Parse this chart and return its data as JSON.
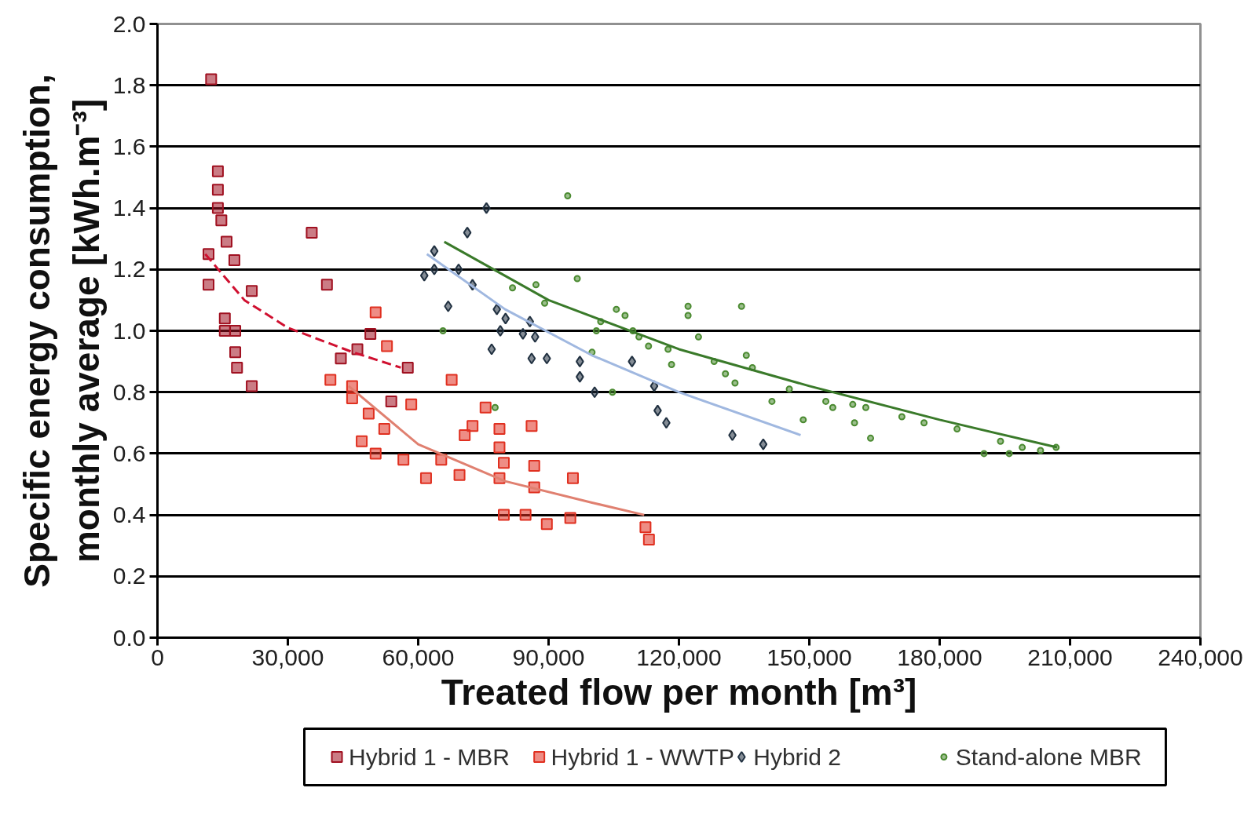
{
  "chart_data": {
    "type": "scatter",
    "xlabel": "Treated flow per month [m³]",
    "ylabel": "Specific energy consumption,\nmonthly average [kWh.m⁻³]",
    "xlim": [
      0,
      240000
    ],
    "ylim": [
      0,
      2
    ],
    "xticks": [
      0,
      {
        "value": 30000,
        "label": "30,000"
      },
      {
        "value": 60000,
        "label": "60,000"
      },
      {
        "value": 90000,
        "label": "90,000"
      },
      {
        "value": 120000,
        "label": "120,000"
      },
      {
        "value": 150000,
        "label": "150,000"
      },
      {
        "value": 180000,
        "label": "180,000"
      },
      {
        "value": 210000,
        "label": "210,000"
      },
      {
        "value": 240000,
        "label": "240,000"
      }
    ],
    "yticks": [
      {
        "value": 0,
        "label": "0.0"
      },
      {
        "value": 0.2,
        "label": "0.2"
      },
      {
        "value": 0.4,
        "label": "0.4"
      },
      {
        "value": 0.6,
        "label": "0.6"
      },
      {
        "value": 0.8,
        "label": "0.8"
      },
      {
        "value": 1.0,
        "label": "1.0"
      },
      {
        "value": 1.2,
        "label": "1.2"
      },
      {
        "value": 1.4,
        "label": "1.4"
      },
      {
        "value": 1.6,
        "label": "1.6"
      },
      {
        "value": 1.8,
        "label": "1.8"
      },
      {
        "value": 2.0,
        "label": "2.0"
      }
    ],
    "grid": "y",
    "legend": "bottom",
    "series": [
      {
        "name": "Hybrid 1 - MBR",
        "color": "#a01020",
        "marker": "square",
        "x": [
          12350,
          13900,
          13900,
          13900,
          14700,
          15900,
          11750,
          17700,
          11750,
          15500,
          15500,
          17900,
          17900,
          18300,
          21700,
          21700,
          35500,
          39000,
          49000,
          46000,
          42200,
          53800,
          57600
        ],
        "values": [
          1.82,
          1.52,
          1.46,
          1.4,
          1.36,
          1.29,
          1.25,
          1.23,
          1.15,
          1.04,
          1.0,
          1.0,
          0.93,
          0.88,
          0.82,
          1.13,
          1.32,
          1.15,
          0.99,
          0.94,
          0.91,
          0.77,
          0.88
        ]
      },
      {
        "name": "Hybrid 1 - WWTP",
        "color": "#e03020",
        "marker": "square",
        "x": [
          50200,
          52800,
          39800,
          44800,
          44800,
          58400,
          67700,
          48600,
          52200,
          47000,
          50200,
          56600,
          61800,
          65300,
          69500,
          70700,
          72500,
          75500,
          78700,
          78700,
          79700,
          78700,
          86100,
          86700,
          86700,
          95600,
          79700,
          84700,
          89600,
          95000,
          112300,
          113100
        ],
        "values": [
          1.06,
          0.95,
          0.84,
          0.82,
          0.78,
          0.76,
          0.84,
          0.73,
          0.68,
          0.64,
          0.6,
          0.58,
          0.52,
          0.58,
          0.53,
          0.66,
          0.69,
          0.75,
          0.68,
          0.62,
          0.57,
          0.52,
          0.69,
          0.56,
          0.49,
          0.52,
          0.4,
          0.4,
          0.37,
          0.39,
          0.36,
          0.32
        ]
      },
      {
        "name": "Hybrid 2",
        "color": "#203040",
        "marker": "diamond",
        "x": [
          61400,
          63700,
          63700,
          66900,
          71300,
          75700,
          72500,
          69300,
          76900,
          78100,
          80100,
          78900,
          84100,
          85700,
          86100,
          89600,
          86900,
          97200,
          97200,
          100600,
          109200,
          114300,
          115100,
          117100,
          132300,
          139400
        ],
        "values": [
          1.18,
          1.26,
          1.2,
          1.08,
          1.32,
          1.4,
          1.15,
          1.2,
          0.94,
          1.07,
          1.04,
          1.0,
          0.99,
          1.03,
          0.91,
          0.91,
          0.98,
          0.9,
          0.85,
          0.8,
          0.9,
          0.82,
          0.74,
          0.7,
          0.66,
          0.63
        ]
      },
      {
        "name": "Stand-alone MBR",
        "color": "#4a8a30",
        "marker": "circle",
        "x": [
          65700,
          77700,
          94400,
          96600,
          81700,
          87100,
          89100,
          101000,
          102000,
          105600,
          107600,
          109400,
          110800,
          113000,
          117500,
          118300,
          122100,
          122100,
          124500,
          128100,
          130700,
          134400,
          135500,
          136900,
          132900,
          141400,
          145400,
          148600,
          153800,
          155400,
          160000,
          163000,
          160400,
          164100,
          171300,
          176400,
          184000,
          190200,
          194000,
          196000,
          199000,
          203200,
          206800,
          104700,
          100000
        ],
        "values": [
          1.0,
          0.75,
          1.44,
          1.17,
          1.14,
          1.15,
          1.09,
          1.0,
          1.03,
          1.07,
          1.05,
          1.0,
          0.98,
          0.95,
          0.94,
          0.89,
          1.08,
          1.05,
          0.98,
          0.9,
          0.86,
          1.08,
          0.92,
          0.88,
          0.83,
          0.77,
          0.81,
          0.71,
          0.77,
          0.75,
          0.76,
          0.75,
          0.7,
          0.65,
          0.72,
          0.7,
          0.68,
          0.6,
          0.64,
          0.6,
          0.62,
          0.61,
          0.62,
          0.8,
          0.93
        ]
      },
      {
        "type": "line",
        "color": "#d01030",
        "line_style": "dashed",
        "x": [
          11000,
          20000,
          30000,
          45000,
          56000
        ],
        "values": [
          1.25,
          1.1,
          1.01,
          0.93,
          0.88
        ]
      },
      {
        "type": "line",
        "color": "#e08070",
        "line_style": "solid",
        "x": [
          44000,
          60000,
          80000,
          100000,
          112000
        ],
        "values": [
          0.82,
          0.63,
          0.51,
          0.44,
          0.4
        ]
      },
      {
        "type": "line",
        "color": "#a0b8e0",
        "line_style": "solid",
        "x": [
          62000,
          80000,
          100000,
          120000,
          148000
        ],
        "values": [
          1.25,
          1.07,
          0.92,
          0.8,
          0.66
        ]
      },
      {
        "type": "line",
        "color": "#3a7a2a",
        "line_style": "solid",
        "x": [
          66000,
          90000,
          120000,
          150000,
          180000,
          207000
        ],
        "values": [
          1.29,
          1.1,
          0.94,
          0.82,
          0.71,
          0.62
        ]
      }
    ]
  }
}
